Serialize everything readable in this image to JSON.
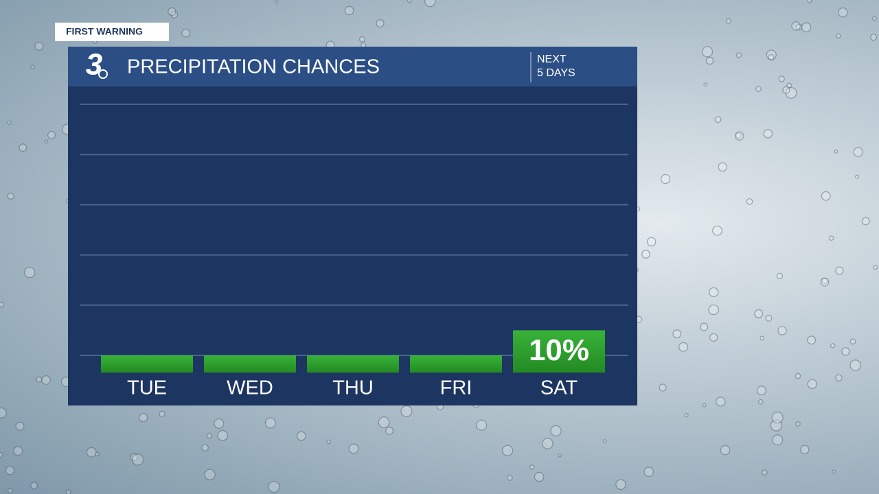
{
  "badge": "FIRST WARNING",
  "logo": "3",
  "period": [
    "NEXT",
    "5 DAYS"
  ],
  "chart_data": {
    "type": "bar",
    "title": "PRECIPITATION CHANCES",
    "categories": [
      "TUE",
      "WED",
      "THU",
      "FRI",
      "SAT"
    ],
    "values": [
      0,
      0,
      0,
      0,
      10
    ],
    "value_labels": [
      null,
      null,
      null,
      null,
      "10%"
    ],
    "color": "#2e9e2e",
    "ylim": [
      0,
      100
    ],
    "yticks": [
      0,
      20,
      40,
      60,
      80,
      100
    ],
    "grid": true
  }
}
